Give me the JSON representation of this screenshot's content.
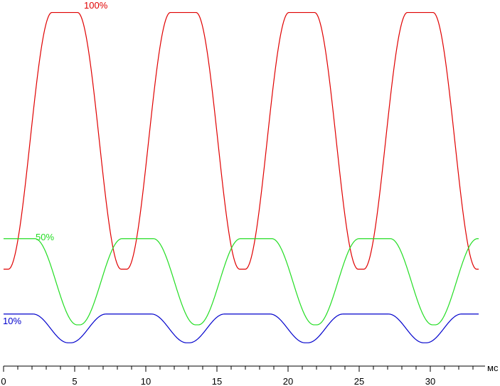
{
  "chart_data": {
    "type": "line",
    "title": "",
    "xlabel": "мс",
    "ylabel": "",
    "xlim": [
      0,
      33.5
    ],
    "ylim": [
      0,
      1
    ],
    "grid": false,
    "x_ticks": [
      "0",
      "5",
      "10",
      "15",
      "20",
      "25",
      "30"
    ],
    "x_tick_values": [
      0,
      5,
      10,
      15,
      20,
      25,
      30
    ],
    "x_minor_step": 1,
    "period": 8.33,
    "series": [
      {
        "name": "100%",
        "color": "#e00000",
        "low": 0.27,
        "high": 0.985,
        "peak_x": 4.3,
        "flat_top_width": 1.8,
        "flat_bottom_width": 0.4
      },
      {
        "name": "50%",
        "color": "#22dd22",
        "low": 0.115,
        "high": 0.355,
        "peak_x": 1.1,
        "flat_top_width": 2.2,
        "flat_bottom_width": 0.2
      },
      {
        "name": "10%",
        "color": "#0000cc",
        "low": 0.065,
        "high": 0.145,
        "peak_x": 8.8,
        "flat_top_width": 3.2,
        "flat_bottom_width": 0.2
      }
    ]
  }
}
